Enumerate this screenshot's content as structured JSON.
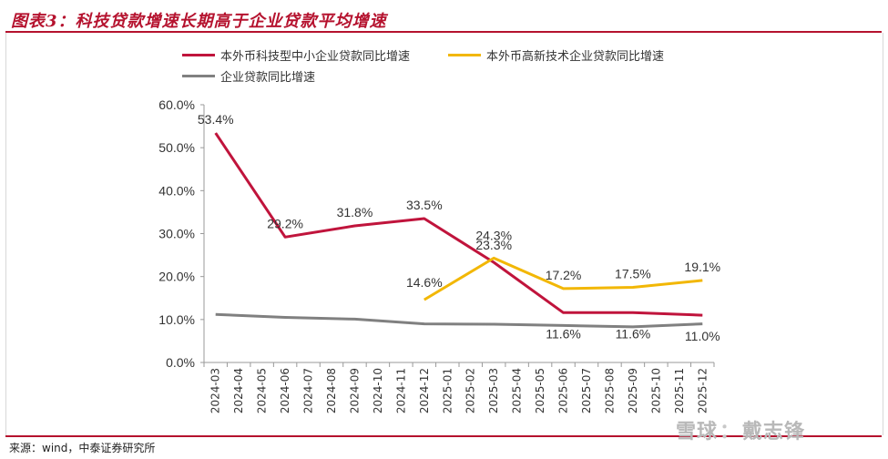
{
  "title": "图表3：科技贷款增速长期高于企业贷款平均增速",
  "source": "来源：wind，中泰证券研究所",
  "watermark": {
    "site": "雪球",
    "separator": "：",
    "author": "戴志锋"
  },
  "colors": {
    "accent": "#b5122e",
    "series_red": "#c0143c",
    "series_yellow": "#f2b705",
    "series_gray": "#808080"
  },
  "chart_data": {
    "type": "line",
    "title": "图表3：科技贷款增速长期高于企业贷款平均增速",
    "xlabel": "",
    "ylabel": "",
    "ylim": [
      0,
      60
    ],
    "yticks": [
      "0.0%",
      "10.0%",
      "20.0%",
      "30.0%",
      "40.0%",
      "50.0%",
      "60.0%"
    ],
    "categories": [
      "2024-03",
      "2024-04",
      "2024-05",
      "2024-06",
      "2024-07",
      "2024-08",
      "2024-09",
      "2024-10",
      "2024-11",
      "2024-12",
      "2025-01",
      "2025-02",
      "2025-03",
      "2025-04",
      "2025-05",
      "2025-06",
      "2025-07",
      "2025-08",
      "2025-09",
      "2025-10",
      "2025-11",
      "2025-12"
    ],
    "legend_position": "top-left",
    "grid": false,
    "series": [
      {
        "name": "本外币科技型中小企业贷款同比增速",
        "color": "#c0143c",
        "values": [
          53.4,
          null,
          null,
          29.2,
          null,
          null,
          31.8,
          null,
          null,
          33.5,
          null,
          null,
          23.3,
          null,
          null,
          11.6,
          null,
          null,
          11.6,
          null,
          null,
          11.0
        ],
        "labels": [
          "53.4%",
          null,
          null,
          "29.2%",
          null,
          null,
          "31.8%",
          null,
          null,
          "33.5%",
          null,
          null,
          "23.3%",
          null,
          null,
          "11.6%",
          null,
          null,
          "11.6%",
          null,
          null,
          "11.0%"
        ]
      },
      {
        "name": "本外币高新技术企业贷款同比增速",
        "color": "#f2b705",
        "values": [
          null,
          null,
          null,
          null,
          null,
          null,
          null,
          null,
          null,
          14.6,
          null,
          null,
          24.3,
          null,
          null,
          17.2,
          null,
          null,
          17.5,
          null,
          null,
          19.1
        ],
        "labels": [
          null,
          null,
          null,
          null,
          null,
          null,
          null,
          null,
          null,
          "14.6%",
          null,
          null,
          "24.3%",
          null,
          null,
          "17.2%",
          null,
          null,
          "17.5%",
          null,
          null,
          "19.1%"
        ]
      },
      {
        "name": "企业贷款同比增速",
        "color": "#808080",
        "values": [
          11.2,
          null,
          null,
          10.5,
          null,
          null,
          10.1,
          null,
          null,
          9.0,
          null,
          null,
          8.9,
          null,
          null,
          8.6,
          null,
          null,
          8.3,
          null,
          null,
          9.0
        ],
        "labels": []
      }
    ]
  }
}
